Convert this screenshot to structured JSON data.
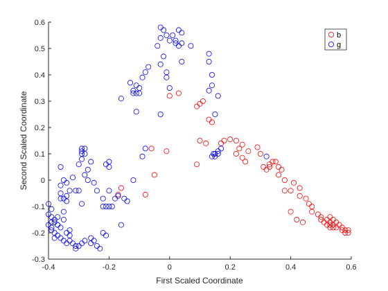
{
  "chart_data": {
    "type": "scatter",
    "title": "",
    "xlabel": "First Scaled Coordinate",
    "ylabel": "Second Scaled Coordinate",
    "xlim": [
      -0.4,
      0.6
    ],
    "ylim": [
      -0.3,
      0.6
    ],
    "xticks": [
      "-0.4",
      "-0.2",
      "0",
      "0.2",
      "0.4",
      "0.6"
    ],
    "yticks": [
      "-0.3",
      "-0.2",
      "-0.1",
      "0",
      "0.1",
      "0.2",
      "0.3",
      "0.4",
      "0.5",
      "0.6"
    ],
    "grid": false,
    "marker": "open-circle",
    "legend": {
      "position": "top-right",
      "entries": [
        "b",
        "g"
      ]
    },
    "series": [
      {
        "name": "b",
        "color": "#ff0000",
        "points": [
          [
            -0.16,
            -0.03
          ],
          [
            -0.17,
            -0.055
          ],
          [
            -0.08,
            -0.055
          ],
          [
            -0.05,
            0.02
          ],
          [
            -0.06,
            0.12
          ],
          [
            -0.01,
            0.11
          ],
          [
            0.09,
            0.06
          ],
          [
            0.12,
            0.14
          ],
          [
            0.1,
            0.15
          ],
          [
            0.17,
            0.14
          ],
          [
            0.18,
            0.15
          ],
          [
            0.2,
            0.155
          ],
          [
            0.22,
            0.15
          ],
          [
            0.24,
            0.135
          ],
          [
            0.23,
            0.12
          ],
          [
            0.22,
            0.1
          ],
          [
            0.24,
            0.085
          ],
          [
            0.25,
            0.07
          ],
          [
            0.26,
            0.11
          ],
          [
            0.3,
            0.1
          ],
          [
            0.29,
            0.125
          ],
          [
            0.31,
            0.05
          ],
          [
            0.33,
            0.05
          ],
          [
            0.32,
            0.04
          ],
          [
            0.33,
            0.06
          ],
          [
            0.34,
            0.07
          ],
          [
            0.35,
            0.07
          ],
          [
            0.36,
            0.05
          ],
          [
            0.37,
            0.04
          ],
          [
            0.36,
            0.02
          ],
          [
            0.38,
            0.0
          ],
          [
            0.38,
            -0.04
          ],
          [
            0.41,
            -0.01
          ],
          [
            0.4,
            -0.04
          ],
          [
            0.43,
            -0.03
          ],
          [
            0.43,
            -0.06
          ],
          [
            0.45,
            -0.07
          ],
          [
            0.46,
            -0.09
          ],
          [
            0.47,
            -0.1
          ],
          [
            0.4,
            -0.12
          ],
          [
            0.42,
            -0.15
          ],
          [
            0.44,
            -0.16
          ],
          [
            0.47,
            -0.12
          ],
          [
            0.49,
            -0.13
          ],
          [
            0.5,
            -0.14
          ],
          [
            0.5,
            -0.15
          ],
          [
            0.51,
            -0.16
          ],
          [
            0.52,
            -0.15
          ],
          [
            0.52,
            -0.17
          ],
          [
            0.53,
            -0.14
          ],
          [
            0.53,
            -0.16
          ],
          [
            0.53,
            -0.18
          ],
          [
            0.54,
            -0.15
          ],
          [
            0.54,
            -0.17
          ],
          [
            0.55,
            -0.16
          ],
          [
            0.55,
            -0.18
          ],
          [
            0.56,
            -0.17
          ],
          [
            0.57,
            -0.18
          ],
          [
            0.57,
            -0.19
          ],
          [
            0.58,
            -0.19
          ],
          [
            0.59,
            -0.19
          ],
          [
            0.59,
            -0.2
          ],
          [
            0.58,
            -0.2
          ],
          [
            0.53,
            -0.17
          ],
          [
            0.54,
            -0.18
          ],
          [
            0.0,
            0.32
          ],
          [
            0.03,
            0.33
          ],
          [
            0.1,
            0.29
          ],
          [
            0.09,
            0.28
          ],
          [
            0.11,
            0.3
          ],
          [
            0.13,
            0.23
          ],
          [
            0.14,
            0.22
          ]
        ]
      },
      {
        "name": "g",
        "color": "#0000ff",
        "points": [
          [
            -0.4,
            -0.09
          ],
          [
            -0.4,
            -0.13
          ],
          [
            -0.39,
            -0.16
          ],
          [
            -0.4,
            -0.17
          ],
          [
            -0.39,
            -0.19
          ],
          [
            -0.38,
            -0.2
          ],
          [
            -0.38,
            -0.15
          ],
          [
            -0.39,
            -0.14
          ],
          [
            -0.37,
            -0.17
          ],
          [
            -0.36,
            -0.18
          ],
          [
            -0.37,
            -0.21
          ],
          [
            -0.36,
            -0.22
          ],
          [
            -0.35,
            -0.23
          ],
          [
            -0.34,
            -0.2
          ],
          [
            -0.33,
            -0.21
          ],
          [
            -0.33,
            -0.23
          ],
          [
            -0.32,
            -0.24
          ],
          [
            -0.31,
            -0.25
          ],
          [
            -0.31,
            -0.26
          ],
          [
            -0.3,
            -0.25
          ],
          [
            -0.29,
            -0.24
          ],
          [
            -0.33,
            -0.19
          ],
          [
            -0.35,
            -0.15
          ],
          [
            -0.35,
            -0.12
          ],
          [
            -0.35,
            -0.07
          ],
          [
            -0.36,
            -0.05
          ],
          [
            -0.36,
            -0.02
          ],
          [
            -0.35,
            0.0
          ],
          [
            -0.34,
            -0.01
          ],
          [
            -0.33,
            -0.04
          ],
          [
            -0.32,
            0.01
          ],
          [
            -0.31,
            -0.04
          ],
          [
            -0.3,
            0.06
          ],
          [
            -0.29,
            0.08
          ],
          [
            -0.28,
            0.1
          ],
          [
            -0.29,
            0.12
          ],
          [
            -0.28,
            0.12
          ],
          [
            -0.29,
            0.11
          ],
          [
            -0.28,
            0.02
          ],
          [
            -0.29,
            -0.09
          ],
          [
            -0.27,
            0.04
          ],
          [
            -0.26,
            0.07
          ],
          [
            -0.22,
            -0.07
          ],
          [
            -0.22,
            -0.1
          ],
          [
            -0.21,
            -0.1
          ],
          [
            -0.2,
            -0.1
          ],
          [
            -0.21,
            -0.21
          ],
          [
            -0.22,
            -0.2
          ],
          [
            -0.25,
            -0.23
          ],
          [
            -0.26,
            -0.24
          ],
          [
            -0.24,
            -0.25
          ],
          [
            -0.23,
            -0.26
          ],
          [
            -0.2,
            -0.04
          ],
          [
            -0.19,
            -0.1
          ],
          [
            -0.18,
            -0.07
          ],
          [
            -0.17,
            -0.06
          ],
          [
            -0.16,
            -0.17
          ],
          [
            -0.15,
            -0.07
          ],
          [
            -0.14,
            -0.08
          ],
          [
            -0.2,
            0.05
          ],
          [
            -0.21,
            0.06
          ],
          [
            -0.12,
            0.0
          ],
          [
            -0.09,
            0.09
          ],
          [
            -0.08,
            0.12
          ],
          [
            -0.16,
            0.31
          ],
          [
            -0.13,
            0.37
          ],
          [
            -0.12,
            0.33
          ],
          [
            -0.12,
            0.34
          ],
          [
            -0.11,
            0.33
          ],
          [
            -0.11,
            0.36
          ],
          [
            -0.1,
            0.35
          ],
          [
            -0.1,
            0.33
          ],
          [
            -0.09,
            0.39
          ],
          [
            -0.08,
            0.41
          ],
          [
            -0.07,
            0.43
          ],
          [
            -0.11,
            0.26
          ],
          [
            -0.03,
            0.44
          ],
          [
            -0.02,
            0.47
          ],
          [
            -0.04,
            0.51
          ],
          [
            -0.03,
            0.54
          ],
          [
            -0.03,
            0.58
          ],
          [
            -0.02,
            0.57
          ],
          [
            -0.01,
            0.55
          ],
          [
            0.0,
            0.53
          ],
          [
            0.01,
            0.55
          ],
          [
            0.02,
            0.53
          ],
          [
            0.03,
            0.57
          ],
          [
            0.04,
            0.56
          ],
          [
            0.04,
            0.52
          ],
          [
            0.03,
            0.51
          ],
          [
            0.02,
            0.52
          ],
          [
            -0.01,
            0.41
          ],
          [
            -0.01,
            0.39
          ],
          [
            0.0,
            0.35
          ],
          [
            -0.03,
            0.25
          ],
          [
            0.04,
            0.45
          ],
          [
            0.07,
            0.51
          ],
          [
            0.13,
            0.48
          ],
          [
            0.13,
            0.45
          ],
          [
            0.14,
            0.4
          ],
          [
            0.14,
            0.36
          ],
          [
            0.13,
            0.34
          ],
          [
            0.16,
            0.32
          ],
          [
            0.15,
            0.25
          ],
          [
            0.14,
            0.09
          ],
          [
            0.145,
            0.1
          ],
          [
            0.15,
            0.09
          ],
          [
            0.16,
            0.1
          ],
          [
            0.17,
            0.12
          ],
          [
            0.15,
            0.1
          ],
          [
            0.16,
            0.11
          ],
          [
            -0.39,
            -0.11
          ],
          [
            -0.38,
            -0.22
          ],
          [
            -0.37,
            -0.14
          ],
          [
            -0.34,
            -0.06
          ],
          [
            -0.34,
            -0.08
          ],
          [
            -0.3,
            -0.04
          ],
          [
            -0.27,
            0.0
          ],
          [
            -0.25,
            -0.01
          ],
          [
            -0.29,
            0.1
          ],
          [
            -0.2,
            0.07
          ],
          [
            -0.24,
            -0.04
          ],
          [
            -0.28,
            -0.23
          ],
          [
            -0.26,
            -0.22
          ],
          [
            0.32,
            0.09
          ],
          [
            -0.36,
            0.05
          ],
          [
            -0.39,
            -0.18
          ],
          [
            -0.37,
            -0.17
          ],
          [
            -0.34,
            -0.24
          ],
          [
            -0.36,
            -0.07
          ],
          [
            -0.38,
            -0.16
          ]
        ]
      }
    ]
  }
}
